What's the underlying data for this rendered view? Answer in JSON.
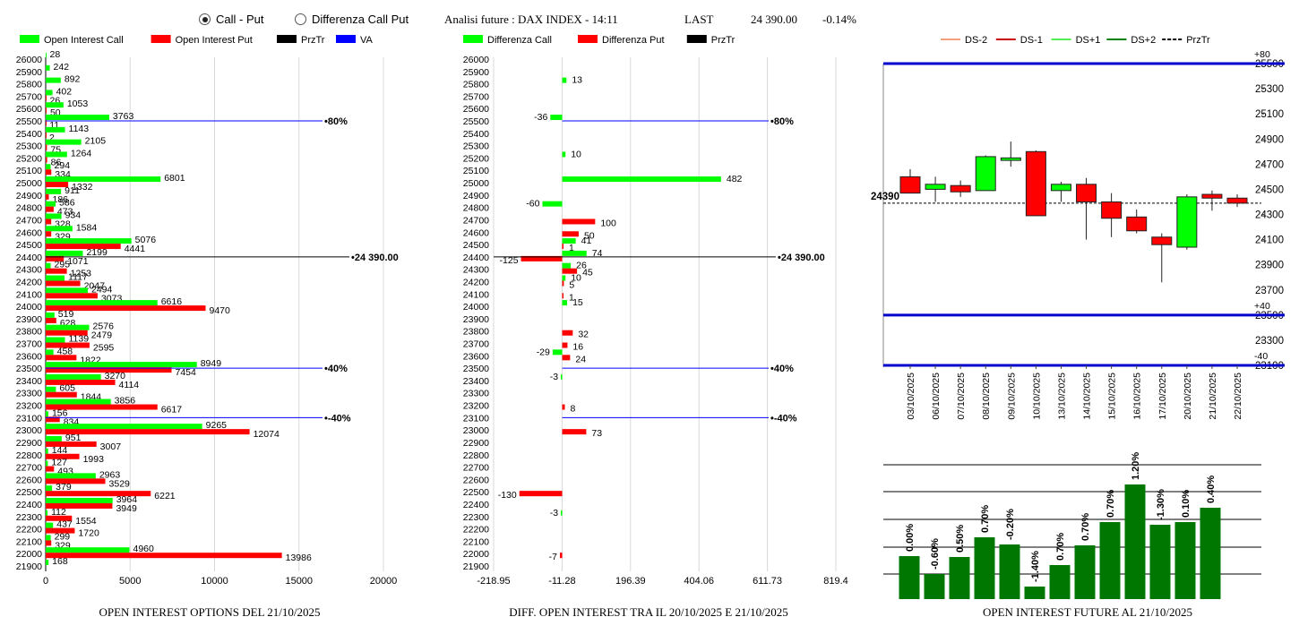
{
  "header": {
    "mode_options": [
      "Call - Put",
      "Differenza Call Put"
    ],
    "mode_selected": 0,
    "analysis_title": "Analisi future : DAX INDEX - 14:11",
    "last_label": "LAST",
    "last_value": "24 390.00",
    "last_change": "-0.14%"
  },
  "colors": {
    "call": "#00ff00",
    "put": "#ff0000",
    "prztr": "#000000",
    "va": "#0000ff",
    "bar_dark_green": "#007700",
    "ds_minus2": "#f4a07a",
    "ds_minus1": "#cc0000",
    "ds_plus1": "#55ee55",
    "ds_plus2": "#008000"
  },
  "chart_data": [
    {
      "type": "bar",
      "orientation": "horizontal",
      "title": "OPEN INTEREST OPTIONS DEL 21/10/2025",
      "legend": [
        "Open Interest Call",
        "Open Interest Put",
        "PrzTr",
        "VA"
      ],
      "categories": [
        26000,
        25900,
        25800,
        25700,
        25600,
        25500,
        25400,
        25300,
        25200,
        25100,
        25000,
        24900,
        24800,
        24700,
        24600,
        24500,
        24400,
        24300,
        24200,
        24100,
        24000,
        23900,
        23800,
        23700,
        23600,
        23500,
        23400,
        23300,
        23200,
        23100,
        23000,
        22900,
        22800,
        22700,
        22600,
        22500,
        22400,
        22300,
        22200,
        22100,
        22000,
        21900
      ],
      "series": [
        {
          "name": "Open Interest Call",
          "values": [
            28,
            242,
            892,
            402,
            1053,
            3763,
            1143,
            2105,
            1264,
            294,
            6801,
            911,
            586,
            934,
            1584,
            5076,
            2199,
            295,
            1117,
            2494,
            6616,
            519,
            2576,
            1139,
            458,
            8949,
            3270,
            605,
            3856,
            156,
            9265,
            951,
            144,
            127,
            2963,
            379,
            3964,
            112,
            437,
            299,
            4960,
            168
          ]
        },
        {
          "name": "Open Interest Put",
          "values": [
            0,
            0,
            0,
            26,
            50,
            11,
            2,
            75,
            86,
            334,
            1332,
            186,
            473,
            328,
            329,
            4441,
            1071,
            1253,
            2047,
            3073,
            9470,
            628,
            2479,
            2595,
            1822,
            7454,
            4114,
            1844,
            6617,
            834,
            12074,
            3007,
            1993,
            493,
            3529,
            6221,
            3949,
            1554,
            1720,
            329,
            13986,
            0
          ]
        }
      ],
      "xlim": [
        0,
        20000
      ],
      "xticks": [
        "0",
        "5000",
        "10000",
        "15000",
        "20000"
      ],
      "reference_lines": [
        {
          "strike": 25500,
          "label": "80%",
          "color": "#0000ff"
        },
        {
          "strike": 24400,
          "label": "24 390.00",
          "color": "#000000"
        },
        {
          "strike": 23500,
          "label": "40%",
          "color": "#0000ff"
        },
        {
          "strike": 23100,
          "label": "-40%",
          "color": "#0000ff"
        }
      ]
    },
    {
      "type": "bar",
      "orientation": "horizontal",
      "title": "DIFF. OPEN INTEREST TRA IL 20/10/2025 E 21/10/2025",
      "legend": [
        "Differenza Call",
        "Differenza Put",
        "PrzTr"
      ],
      "categories": [
        26000,
        25900,
        25800,
        25700,
        25600,
        25500,
        25400,
        25300,
        25200,
        25100,
        25000,
        24900,
        24800,
        24700,
        24600,
        24500,
        24400,
        24300,
        24200,
        24100,
        24000,
        23900,
        23800,
        23700,
        23600,
        23500,
        23400,
        23300,
        23200,
        23100,
        23000,
        22900,
        22800,
        22700,
        22600,
        22500,
        22400,
        22300,
        22200,
        22100,
        22000,
        21900
      ],
      "call_diff": [
        null,
        null,
        13,
        null,
        null,
        -36,
        null,
        null,
        10,
        null,
        482,
        null,
        -60,
        null,
        null,
        41,
        74,
        26,
        10,
        null,
        15,
        null,
        null,
        null,
        -29,
        null,
        -3,
        null,
        null,
        null,
        null,
        null,
        null,
        null,
        null,
        null,
        null,
        -3,
        null,
        null,
        null,
        null
      ],
      "put_diff": [
        null,
        null,
        null,
        null,
        null,
        null,
        null,
        null,
        null,
        null,
        null,
        null,
        null,
        100,
        50,
        1,
        -125,
        45,
        5,
        1,
        null,
        null,
        32,
        16,
        24,
        null,
        null,
        null,
        8,
        null,
        73,
        null,
        null,
        null,
        null,
        -130,
        null,
        null,
        null,
        null,
        -7,
        null
      ],
      "xlim": [
        -218.95,
        819.4
      ],
      "xticks": [
        "-218.95",
        "-11.28",
        "196.39",
        "404.06",
        "611.73",
        "819.4"
      ],
      "reference_lines": [
        {
          "strike": 25500,
          "label": "80%",
          "color": "#0000ff"
        },
        {
          "strike": 24400,
          "label": "24 390.00",
          "color": "#000000"
        },
        {
          "strike": 23500,
          "label": "40%",
          "color": "#0000ff"
        },
        {
          "strike": 23100,
          "label": "-40%",
          "color": "#0000ff"
        }
      ]
    },
    {
      "type": "candlestick",
      "legend": [
        "DS-2",
        "DS-1",
        "DS+1",
        "DS+2",
        "PrzTr"
      ],
      "dates": [
        "03/10/2025",
        "06/10/2025",
        "07/10/2025",
        "08/10/2025",
        "09/10/2025",
        "10/10/2025",
        "13/10/2025",
        "14/10/2025",
        "15/10/2025",
        "16/10/2025",
        "17/10/2025",
        "20/10/2025",
        "21/10/2025",
        "22/10/2025"
      ],
      "ohlc": [
        [
          24600,
          24660,
          24470,
          24470
        ],
        [
          24500,
          24600,
          24400,
          24540
        ],
        [
          24530,
          24570,
          24440,
          24480
        ],
        [
          24490,
          24770,
          24490,
          24760
        ],
        [
          24730,
          24880,
          24680,
          24750
        ],
        [
          24800,
          24810,
          24290,
          24290
        ],
        [
          24490,
          24560,
          24400,
          24540
        ],
        [
          24540,
          24590,
          24100,
          24400
        ],
        [
          24400,
          24470,
          24120,
          24270
        ],
        [
          24280,
          24340,
          24150,
          24170
        ],
        [
          24120,
          24150,
          23760,
          24060
        ],
        [
          24040,
          24460,
          24020,
          24440
        ],
        [
          24460,
          24490,
          24330,
          24430
        ],
        [
          24430,
          24460,
          24360,
          24390
        ]
      ],
      "ylim": [
        23100,
        25500
      ],
      "yticks": [
        "25500",
        "25300",
        "25100",
        "24900",
        "24700",
        "24500",
        "24300",
        "24100",
        "23900",
        "23700",
        "23500",
        "23300",
        "23100"
      ],
      "price_line": 24390,
      "price_label": "24390",
      "bands": [
        {
          "value": 25500,
          "label": "+80"
        },
        {
          "value": 23500,
          "label": "+40"
        },
        {
          "value": 23100,
          "label": "-40"
        }
      ]
    },
    {
      "type": "bar",
      "title": "OPEN INTEREST FUTURE AL 21/10/2025",
      "categories": [
        "03/10/2025",
        "06/10/2025",
        "07/10/2025",
        "08/10/2025",
        "09/10/2025",
        "10/10/2025",
        "13/10/2025",
        "14/10/2025",
        "15/10/2025",
        "16/10/2025",
        "17/10/2025",
        "20/10/2025",
        "21/10/2025"
      ],
      "values": [
        48,
        28,
        47,
        69,
        61,
        14,
        38,
        60,
        86,
        128,
        83,
        86,
        102
      ],
      "labels": [
        "0.00%",
        "-0.60%",
        "0.50%",
        "0.70%",
        "-0.20%",
        "-1.40%",
        "0.70%",
        "0.70%",
        "0.70%",
        "1.20%",
        "-1.30%",
        "0.10%",
        "0.40%"
      ],
      "ylim": [
        0,
        150
      ]
    }
  ]
}
